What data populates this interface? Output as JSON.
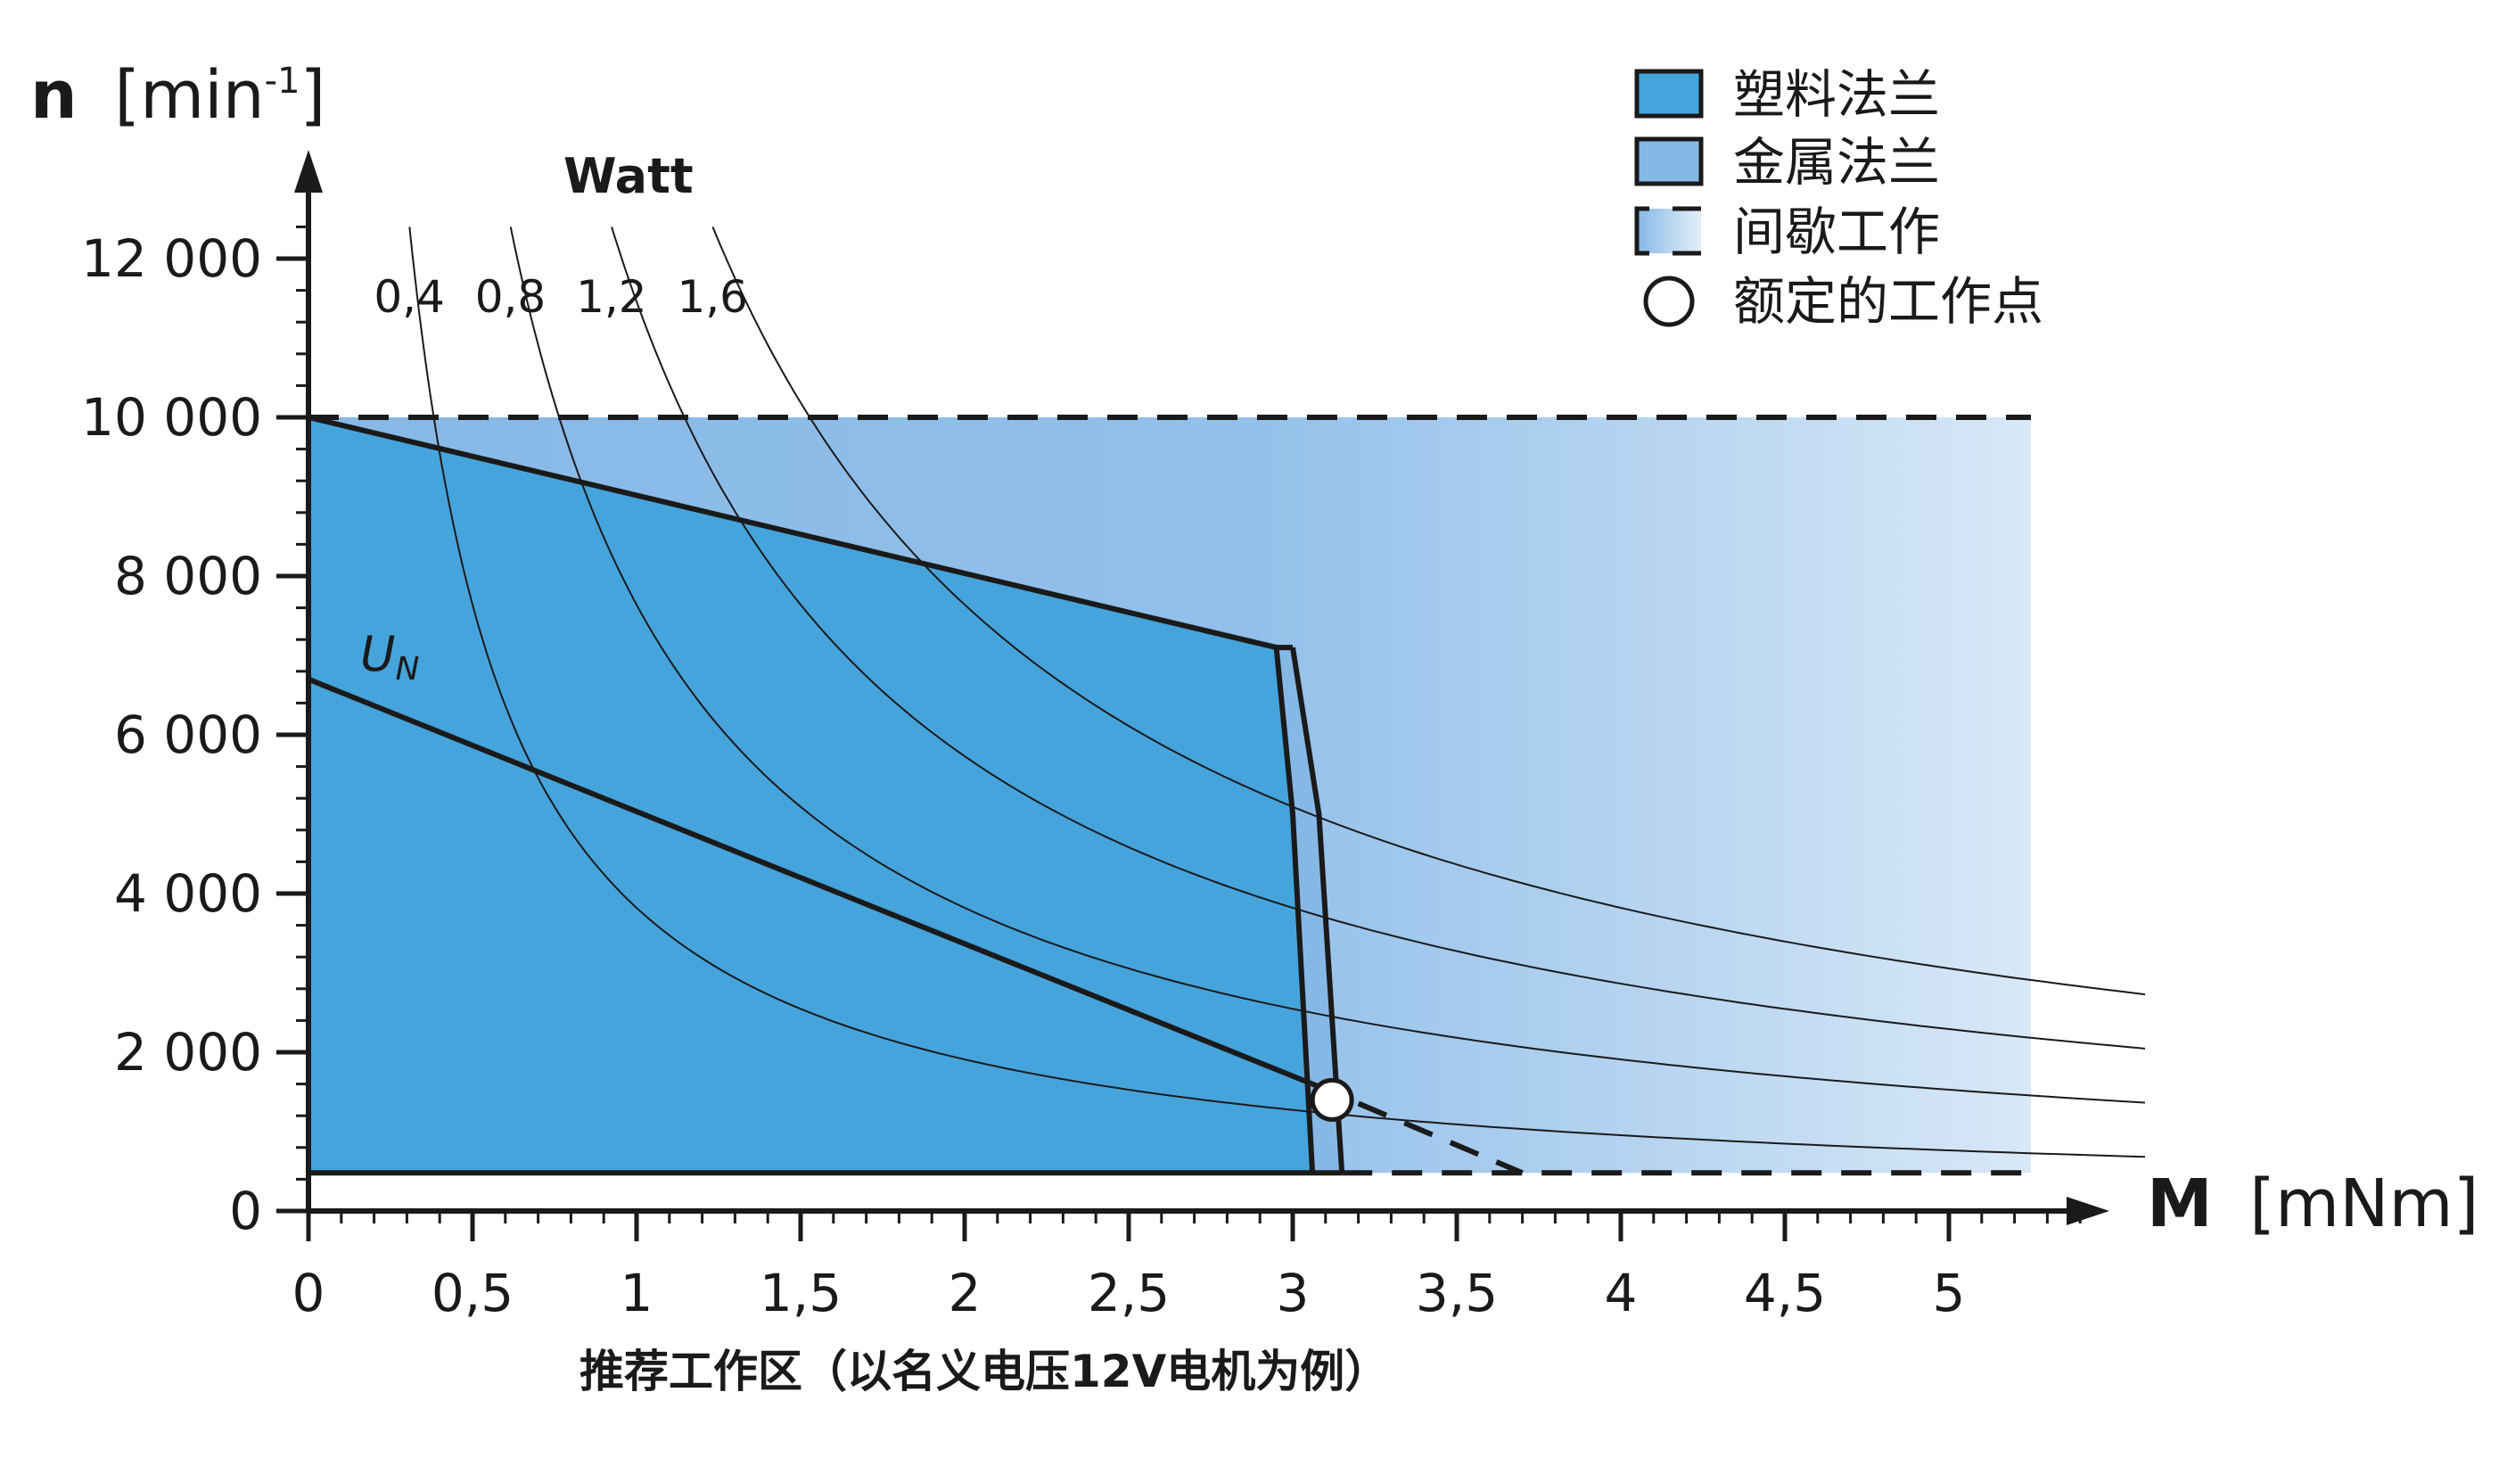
{
  "chart_data": {
    "type": "area",
    "y_axis": {
      "symbol": "n",
      "unit_base": "[min",
      "unit_exp": "-1",
      "unit_close": "]",
      "range": [
        0,
        12000
      ],
      "ticks": [
        0,
        2000,
        4000,
        6000,
        8000,
        10000,
        12000
      ],
      "tick_labels": [
        "0",
        "2 000",
        "4 000",
        "6 000",
        "8 000",
        "10 000",
        "12 000"
      ]
    },
    "x_axis": {
      "symbol": "M",
      "unit": "[mNm]",
      "range": [
        0,
        5
      ],
      "ticks": [
        0,
        0.5,
        1,
        1.5,
        2,
        2.5,
        3,
        3.5,
        4,
        4.5,
        5
      ],
      "tick_labels": [
        "0",
        "0,5",
        "1",
        "1,5",
        "2",
        "2,5",
        "3",
        "3,5",
        "4",
        "4,5",
        "5"
      ]
    },
    "power_header": "Watt",
    "power_curves": [
      {
        "label": "0,4",
        "watt": 0.4
      },
      {
        "label": "0,8",
        "watt": 0.8
      },
      {
        "label": "1,2",
        "watt": 1.2
      },
      {
        "label": "1,6",
        "watt": 1.6
      }
    ],
    "regions": {
      "plastic_flange": [
        [
          0,
          10000
        ],
        [
          2.95,
          7100
        ],
        [
          3.0,
          5000
        ],
        [
          3.06,
          480
        ],
        [
          0,
          480
        ]
      ],
      "metal_flange": [
        [
          0,
          10000
        ],
        [
          3.0,
          7100
        ],
        [
          3.08,
          5000
        ],
        [
          3.15,
          480
        ],
        [
          0,
          480
        ]
      ],
      "intermittent": {
        "torque_max": 5.25,
        "speed_max": 10000,
        "speed_min": 480
      }
    },
    "voltage_line": {
      "label": "U",
      "subscript": "N",
      "points": [
        [
          0,
          6700
        ],
        [
          3.06,
          1600
        ]
      ],
      "dashed_extension": [
        [
          3.06,
          1600
        ],
        [
          3.7,
          480
        ]
      ]
    },
    "rated_point": {
      "torque": 3.12,
      "speed": 1400
    },
    "legend": [
      {
        "label": "塑料法兰",
        "kind": "solid",
        "color": "#46a4dc"
      },
      {
        "label": "金属法兰",
        "kind": "solid",
        "color": "#86b8e6"
      },
      {
        "label": "间歇工作",
        "kind": "gradient",
        "color": "#a8cdee"
      },
      {
        "label": "额定的工作点",
        "kind": "circle",
        "color": "#ffffff"
      }
    ],
    "legend_position": "top-right",
    "grid": false,
    "caption": "推荐工作区（以名义电压12V电机为例）"
  }
}
